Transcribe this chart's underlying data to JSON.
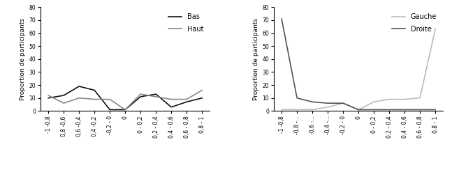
{
  "xlabels_left": [
    "-1 -0,8",
    "0,8 -0,6",
    "0,6 -0,4",
    "0,4 -0,2",
    "-0,2 - 0",
    "0",
    "0 - 0,2",
    "0,2 - 0,4",
    "0,4 - 0,6",
    "0,6 - 0,8",
    "0,8 - 1"
  ],
  "xlabels_right": [
    "-1 -0,8",
    "-0,8 -...",
    "-0,6 -...",
    "-0,4 -...",
    "-0,2 - 0",
    "0",
    "0 - 0,2",
    "0,2 - 0,4",
    "0,4 - 0,6",
    "0,6 - 0,8",
    "0,8 - 1"
  ],
  "bas_values": [
    10,
    12,
    19,
    16,
    1,
    1,
    11,
    13,
    3,
    7,
    10
  ],
  "haut_values": [
    12,
    6,
    10,
    9,
    9,
    1,
    13,
    11,
    9,
    9,
    16
  ],
  "gauche_values": [
    1,
    1,
    1,
    3,
    6,
    1,
    7,
    9,
    9,
    10,
    63
  ],
  "droite_values": [
    71,
    10,
    7,
    6,
    6,
    1,
    1,
    1,
    1,
    1,
    1
  ],
  "ylabel": "Proportion de participants",
  "ylim": [
    0,
    80
  ],
  "yticks": [
    0,
    10,
    20,
    30,
    40,
    50,
    60,
    70,
    80
  ],
  "bas_color": "#111111",
  "haut_color": "#888888",
  "gauche_color": "#bbbbbb",
  "droite_color": "#555555",
  "legend1_labels": [
    "Bas",
    "Haut"
  ],
  "legend2_labels": [
    "Gauche",
    "Droite"
  ],
  "linewidth": 1.2,
  "tick_fontsize": 5.5,
  "ylabel_fontsize": 6.5,
  "legend_fontsize": 7
}
